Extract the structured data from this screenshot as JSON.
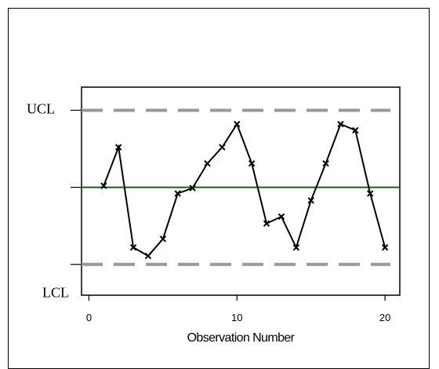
{
  "chart_data": {
    "type": "line",
    "title": "",
    "xlabel": "Observation Number",
    "ylabel": "",
    "x_ticks": [
      0,
      10,
      20
    ],
    "xlim": [
      -0.5,
      21
    ],
    "ylim": [
      -1.4,
      1.3
    ],
    "control_limits": {
      "ucl": 1.0,
      "center": 0.0,
      "lcl": -1.0
    },
    "limit_labels": {
      "ucl": "UCL",
      "lcl": "LCL"
    },
    "grid": false,
    "legend": "none",
    "series": [
      {
        "x": [
          1,
          2,
          3,
          4,
          5,
          6,
          7,
          8,
          9,
          10,
          11,
          12,
          13,
          14,
          15,
          16,
          17,
          18,
          19,
          20
        ],
        "y": [
          0.02,
          0.52,
          -0.78,
          -0.89,
          -0.67,
          -0.08,
          -0.01,
          0.31,
          0.52,
          0.82,
          0.31,
          -0.47,
          -0.38,
          -0.78,
          -0.17,
          0.31,
          0.82,
          0.74,
          -0.08,
          -0.78
        ],
        "marker": "x"
      }
    ],
    "colors": {
      "series": "#000000",
      "center_line": "#1f5a1f",
      "limit_lines": "#999999"
    }
  }
}
